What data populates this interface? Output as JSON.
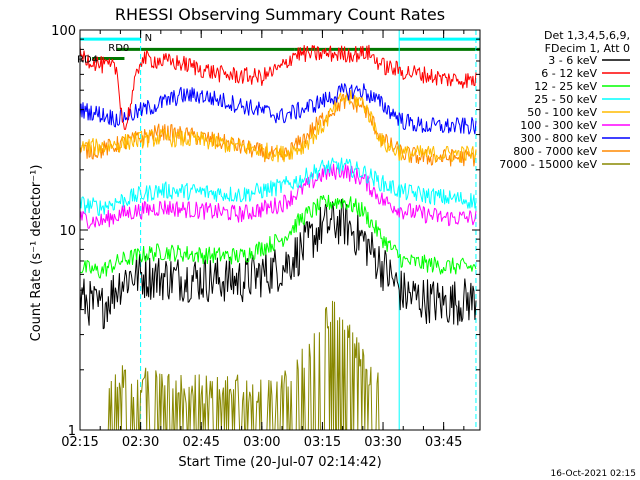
{
  "chart_data": {
    "type": "line",
    "title": "RHESSI Observing Summary Count Rates",
    "xlabel": "Start Time (20-Jul-07 02:14:42)",
    "ylabel": "Count Rate (s⁻¹ detector⁻¹)",
    "x_unit": "time (HH:MM), 20-Jul-2007",
    "xlim": [
      "02:15",
      "03:54"
    ],
    "ylim": [
      1,
      100
    ],
    "yscale": "log",
    "x_ticks": [
      "02:15",
      "02:30",
      "02:45",
      "03:00",
      "03:15",
      "03:30",
      "03:45"
    ],
    "y_ticks": [
      "1",
      "10",
      "100"
    ],
    "legend_header": [
      "Det 1,3,4,5,6,9,",
      "FDecim 1, Att 0"
    ],
    "legend_placement": "top-right, outside plot",
    "footer_date": "16-Oct-2021 02:15",
    "annotations": [
      {
        "text": "RD0",
        "at_time": "02:22",
        "y_level": 82
      },
      {
        "text": "RD4",
        "at_time": "02:15",
        "y_level": 72
      },
      {
        "text": "N",
        "at_time": "02:31",
        "y_level": 92
      }
    ],
    "flag_bars": [
      {
        "name": "N (night)",
        "color": "#00ffff",
        "segments": [
          [
            "02:15",
            "02:30"
          ],
          [
            "03:34",
            "03:54"
          ]
        ],
        "y_level": 90
      },
      {
        "name": "RD0",
        "color": "#007700",
        "segments": [
          [
            "02:24",
            "03:08"
          ],
          [
            "03:08",
            "03:24"
          ],
          [
            "03:24",
            "03:54"
          ]
        ],
        "y_level": 80
      },
      {
        "name": "RD4",
        "color": "#007700",
        "segments": [
          [
            "02:18",
            "02:26"
          ]
        ],
        "y_level": 72
      }
    ],
    "vertical_lines": [
      {
        "time": "02:15",
        "style": "solid",
        "color": "#00ffff"
      },
      {
        "time": "02:30",
        "style": "dashed",
        "color": "#00ffff"
      },
      {
        "time": "03:34",
        "style": "solid",
        "color": "#00ffff"
      },
      {
        "time": "03:53",
        "style": "dashed",
        "color": "#00ffff"
      }
    ],
    "series": [
      {
        "name": "3 - 6 keV",
        "color": "#000000",
        "times": [
          "02:15",
          "02:20",
          "02:25",
          "02:28",
          "02:35",
          "02:45",
          "02:55",
          "03:05",
          "03:10",
          "03:15",
          "03:20",
          "03:25",
          "03:30",
          "03:35",
          "03:40",
          "03:45",
          "03:53"
        ],
        "values": [
          4.6,
          4.0,
          5.5,
          6.0,
          5.8,
          5.7,
          5.6,
          6.5,
          8.0,
          10.5,
          11.0,
          9.0,
          6.5,
          4.8,
          4.5,
          4.3,
          4.5
        ]
      },
      {
        "name": "6 - 12 keV",
        "color": "#ff0000",
        "times": [
          "02:15",
          "02:20",
          "02:24",
          "02:26",
          "02:30",
          "02:40",
          "02:50",
          "03:00",
          "03:05",
          "03:07",
          "03:08",
          "03:15",
          "03:25",
          "03:26",
          "03:30",
          "03:35",
          "03:40",
          "03:45",
          "03:53"
        ],
        "values": [
          75,
          67,
          64,
          31,
          72,
          68,
          60,
          58,
          65,
          72,
          76,
          76,
          76,
          78,
          66,
          62,
          60,
          57,
          56
        ]
      },
      {
        "name": "12 - 25 keV",
        "color": "#00ff00",
        "times": [
          "02:15",
          "02:20",
          "02:25",
          "02:30",
          "02:35",
          "02:45",
          "02:55",
          "03:05",
          "03:10",
          "03:15",
          "03:20",
          "03:25",
          "03:30",
          "03:35",
          "03:40",
          "03:45",
          "03:53"
        ],
        "values": [
          6.5,
          6.2,
          7.0,
          7.5,
          7.8,
          7.5,
          7.4,
          9.0,
          11.5,
          13.5,
          14.0,
          12.5,
          9.0,
          7.0,
          6.8,
          6.6,
          6.5
        ]
      },
      {
        "name": "25 - 50 keV",
        "color": "#00ffff",
        "times": [
          "02:15",
          "02:20",
          "02:25",
          "02:30",
          "02:35",
          "02:45",
          "02:55",
          "03:05",
          "03:10",
          "03:15",
          "03:20",
          "03:25",
          "03:30",
          "03:35",
          "03:40",
          "03:45",
          "03:53"
        ],
        "values": [
          13.5,
          13.0,
          14.0,
          15.0,
          15.8,
          15.5,
          15.0,
          16.5,
          18.0,
          20.5,
          21.0,
          19.5,
          17.0,
          15.5,
          15.0,
          14.5,
          14.0
        ]
      },
      {
        "name": "50 - 100 keV",
        "color": "#ffbb00",
        "times": [
          "02:15",
          "02:20",
          "02:25",
          "02:28",
          "02:35",
          "02:45",
          "02:55",
          "03:05",
          "03:10",
          "03:15",
          "03:20",
          "03:25",
          "03:30",
          "03:35",
          "03:40",
          "03:45",
          "03:53"
        ],
        "values": [
          26,
          26,
          27,
          28,
          29,
          28,
          26,
          24,
          26,
          33,
          46,
          44,
          27,
          24,
          24,
          24,
          24
        ]
      },
      {
        "name": "100 - 300 keV",
        "color": "#ff00ff",
        "times": [
          "02:15",
          "02:20",
          "02:25",
          "02:30",
          "02:35",
          "02:45",
          "02:55",
          "03:05",
          "03:10",
          "03:15",
          "03:20",
          "03:25",
          "03:30",
          "03:35",
          "03:40",
          "03:45",
          "03:53"
        ],
        "values": [
          11.5,
          11.0,
          12.0,
          12.5,
          13.0,
          12.5,
          12.0,
          13.5,
          16.0,
          19.0,
          20.0,
          18.0,
          14.0,
          12.5,
          12.0,
          11.5,
          11.5
        ]
      },
      {
        "name": "300 - 800 keV",
        "color": "#0000ff",
        "times": [
          "02:15",
          "02:20",
          "02:24",
          "02:28",
          "02:35",
          "02:40",
          "02:45",
          "02:55",
          "03:05",
          "03:10",
          "03:15",
          "03:20",
          "03:25",
          "03:30",
          "03:35",
          "03:40",
          "03:45",
          "03:53"
        ],
        "values": [
          40,
          38,
          36,
          38,
          43,
          47,
          47,
          42,
          37,
          40,
          44,
          49,
          50,
          42,
          35,
          33,
          33,
          33
        ]
      },
      {
        "name": "800 - 7000 keV",
        "color": "#ff8800",
        "times": [
          "02:15",
          "02:20",
          "02:25",
          "02:28",
          "02:35",
          "02:45",
          "02:55",
          "03:05",
          "03:10",
          "03:15",
          "03:20",
          "03:25",
          "03:30",
          "03:35",
          "03:40",
          "03:45",
          "03:53"
        ],
        "values": [
          25,
          25,
          27,
          28,
          31,
          29,
          26,
          23,
          28,
          36,
          44,
          42,
          28,
          24,
          23,
          23,
          23
        ]
      },
      {
        "name": "7000 - 15000 keV",
        "color": "#888800",
        "times": [
          "02:22",
          "02:25",
          "02:30",
          "02:35",
          "02:40",
          "03:05",
          "03:10",
          "03:15",
          "03:18",
          "03:20",
          "03:25",
          "03:30"
        ],
        "values": [
          1.5,
          1.8,
          1.7,
          1.8,
          1.6,
          1.6,
          2.3,
          3.5,
          4.0,
          3.3,
          2.2,
          1.5
        ]
      }
    ]
  }
}
